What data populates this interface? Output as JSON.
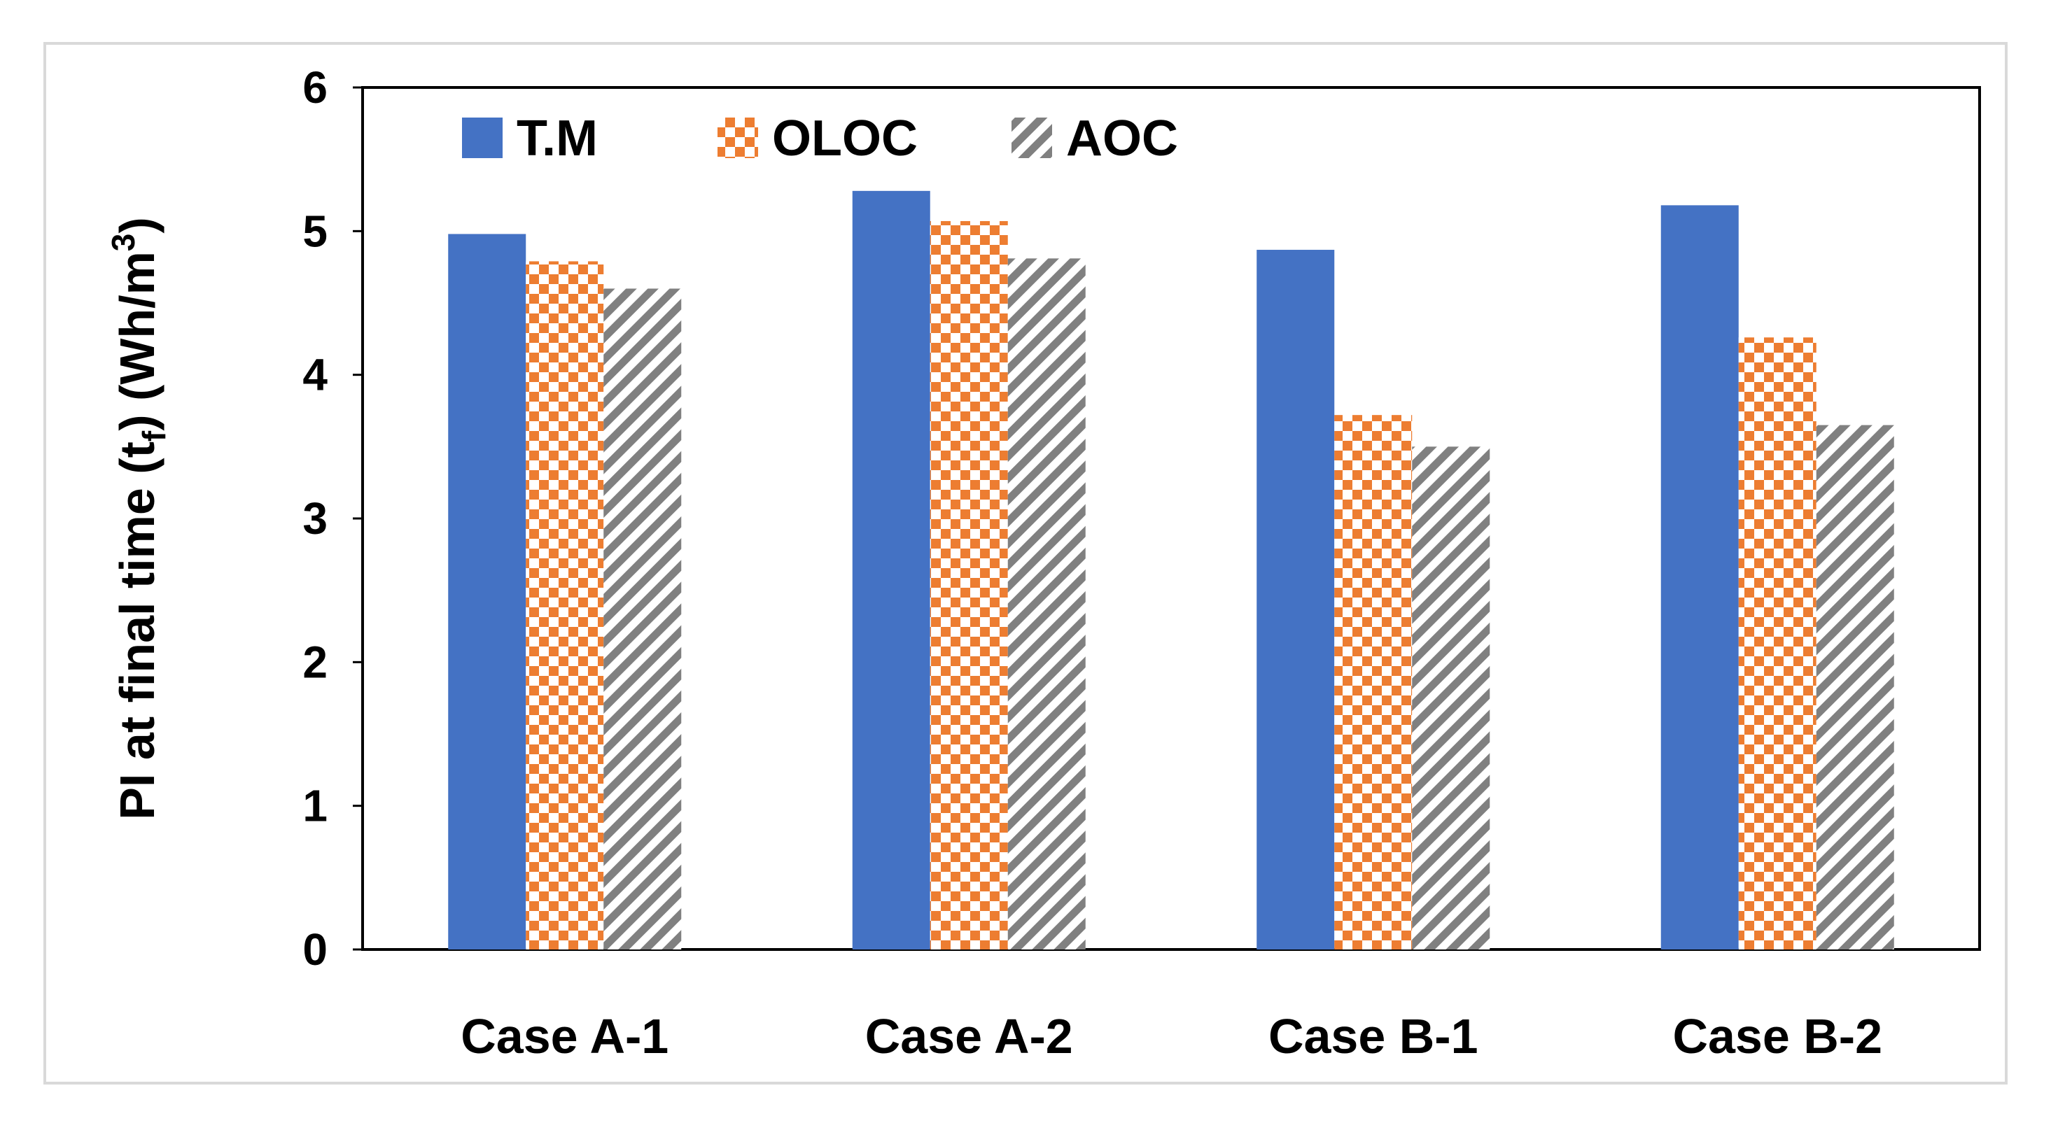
{
  "chart_data": {
    "type": "bar",
    "title": "",
    "xlabel": "",
    "ylabel": {
      "prefix": "PI at final time (t",
      "sub": "f",
      "middle": ") (Wh/m",
      "sup": "3",
      "suffix": ")"
    },
    "ylim": [
      0,
      6
    ],
    "yticks": [
      0,
      1,
      2,
      3,
      4,
      5,
      6
    ],
    "categories": [
      "Case A-1",
      "Case A-2",
      "Case B-1",
      "Case B-2"
    ],
    "series": [
      {
        "name": "T.M",
        "values": [
          4.98,
          5.28,
          4.87,
          5.18
        ],
        "color": "#4472c4",
        "pattern": "solid"
      },
      {
        "name": "OLOC",
        "values": [
          4.79,
          5.07,
          3.72,
          4.26
        ],
        "color": "#ed7d31",
        "pattern": "checker"
      },
      {
        "name": "AOC",
        "values": [
          4.6,
          4.81,
          3.5,
          3.65
        ],
        "color": "#808080",
        "pattern": "diagonal"
      }
    ],
    "legend": "top-left",
    "grid": false
  }
}
